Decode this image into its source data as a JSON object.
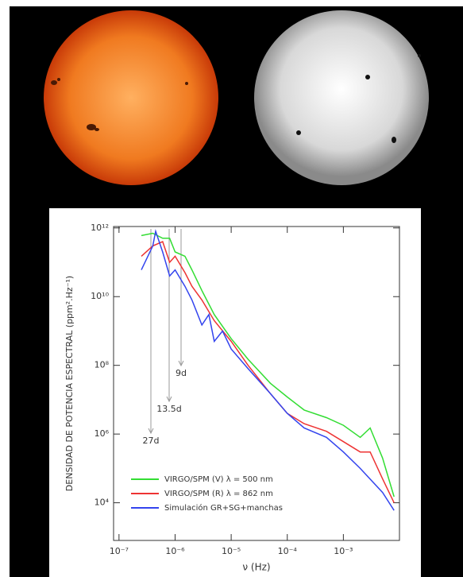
{
  "chart_data": {
    "type": "line",
    "x_label": "ν (Hz)",
    "y_label": "DENSIDAD DE POTENCIA ESPECTRAL (ppm².Hz⁻¹)",
    "annotations": [
      "27d",
      "13.5d",
      "9d"
    ],
    "xlog": true,
    "ylog": true,
    "legend": "lower left",
    "xlim": [
      8e-08,
      0.01
    ],
    "ylim": [
      800,
      1100000000000.0
    ],
    "xticks": [
      {
        "value": 1e-07,
        "label": "10⁻⁷"
      },
      {
        "value": 1e-06,
        "label": "10⁻⁶"
      },
      {
        "value": 1e-05,
        "label": "10⁻⁵"
      },
      {
        "value": 0.0001,
        "label": "10⁻⁴"
      },
      {
        "value": 0.001,
        "label": "10⁻³"
      }
    ],
    "yticks": [
      {
        "value": 10000,
        "label": "10⁴"
      },
      {
        "value": 1000000,
        "label": "10⁶"
      },
      {
        "value": 100000000,
        "label": "10⁸"
      },
      {
        "value": 10000000000,
        "label": "10¹⁰"
      },
      {
        "value": 1000000000000,
        "label": "10¹²"
      }
    ],
    "series": [
      {
        "name": "VIRGO/SPM (V) λ = 500 nm",
        "color": "#33dd33",
        "x": [
          2.5e-07,
          4e-07,
          6e-07,
          8e-07,
          1e-06,
          1.5e-06,
          2e-06,
          3e-06,
          5e-06,
          1e-05,
          2e-05,
          5e-05,
          0.0001,
          0.0002,
          0.0005,
          0.001,
          0.002,
          0.003,
          0.005,
          0.008
        ],
        "values": [
          600000000000.0,
          700000000000.0,
          500000000000.0,
          500000000000.0,
          200000000000.0,
          150000000000.0,
          60000000000.0,
          15000000000.0,
          3000000000.0,
          600000000.0,
          150000000.0,
          30000000.0,
          12000000.0,
          5000000.0,
          3000000.0,
          1800000.0,
          800000.0,
          1500000.0,
          200000.0,
          15000
        ]
      },
      {
        "name": "VIRGO/SPM (R) λ = 862 nm",
        "color": "#ee3333",
        "x": [
          2.5e-07,
          4e-07,
          6e-07,
          8e-07,
          1e-06,
          1.5e-06,
          2e-06,
          3e-06,
          5e-06,
          1e-05,
          2e-05,
          5e-05,
          0.0001,
          0.0002,
          0.0005,
          0.001,
          0.002,
          0.003,
          0.005,
          0.008
        ],
        "values": [
          150000000000.0,
          300000000000.0,
          400000000000.0,
          100000000000.0,
          150000000000.0,
          50000000000.0,
          20000000000.0,
          8000000000.0,
          2000000000.0,
          500000000.0,
          100000000.0,
          15000000.0,
          4000000.0,
          2000000.0,
          1200000.0,
          600000.0,
          300000.0,
          300000.0,
          50000,
          10000
        ]
      },
      {
        "name": "Simulación GR+SG+manchas",
        "color": "#3344ee",
        "x": [
          2.5e-07,
          4e-07,
          4.5e-07,
          6e-07,
          8e-07,
          1e-06,
          1.5e-06,
          2e-06,
          3e-06,
          4e-06,
          5e-06,
          7e-06,
          1e-05,
          2e-05,
          5e-05,
          0.0001,
          0.0002,
          0.0005,
          0.001,
          0.002,
          0.005,
          0.008
        ],
        "values": [
          60000000000.0,
          300000000000.0,
          800000000000.0,
          200000000000.0,
          40000000000.0,
          60000000000.0,
          20000000000.0,
          8000000000.0,
          1500000000.0,
          3000000000.0,
          500000000.0,
          1000000000.0,
          300000000.0,
          80000000.0,
          15000000.0,
          4000000.0,
          1500000.0,
          800000.0,
          300000.0,
          100000.0,
          20000,
          6000
        ]
      }
    ]
  }
}
